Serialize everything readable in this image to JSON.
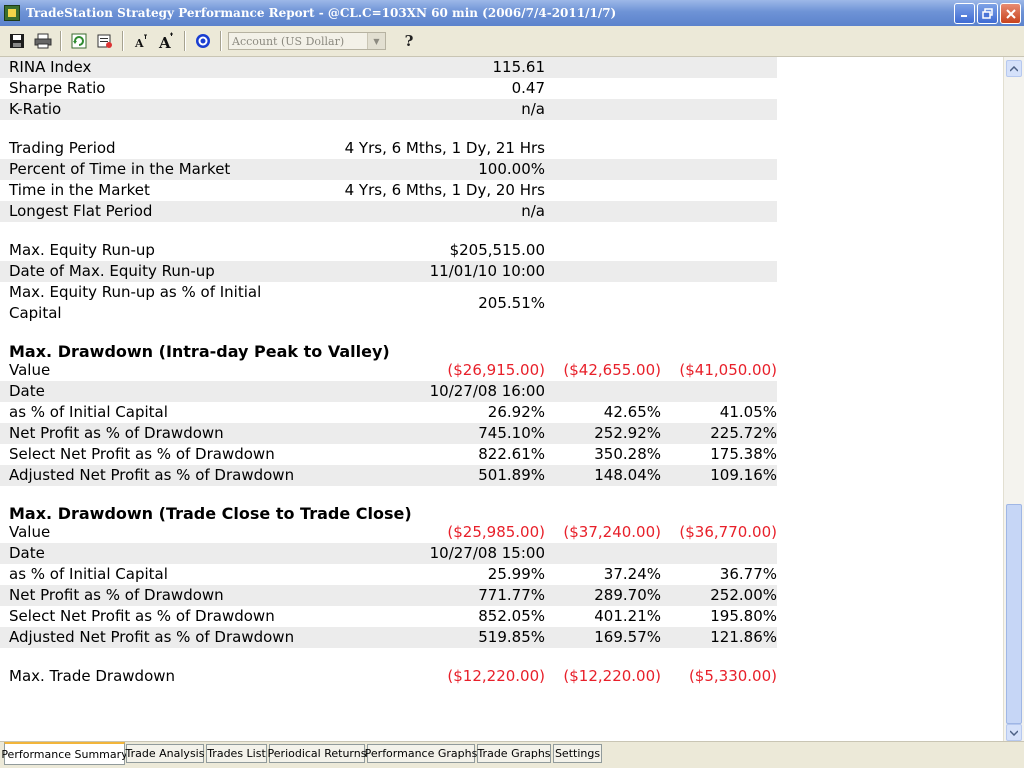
{
  "window": {
    "title": "TradeStation Strategy Performance Report - @CL.C=103XN 60 min (2006/7/4-2011/1/7)",
    "icon": "tradestation-app-icon",
    "buttons": [
      "minimize",
      "restore",
      "close"
    ]
  },
  "toolbar": {
    "account_select": "Account (US Dollar)",
    "icons": [
      "save-icon",
      "print-icon",
      "refresh-icon",
      "properties-icon",
      "font-decrease-icon",
      "font-increase-icon",
      "target-icon",
      "help-icon"
    ]
  },
  "report": {
    "group1": [
      {
        "label": "RINA Index",
        "v1": "115.61"
      },
      {
        "label": "Sharpe Ratio",
        "v1": "0.47"
      },
      {
        "label": "K-Ratio",
        "v1": "n/a"
      }
    ],
    "group2": [
      {
        "label": "Trading Period",
        "v1": "4 Yrs, 6 Mths, 1 Dy, 21 Hrs"
      },
      {
        "label": "Percent of Time in the Market",
        "v1": "100.00%"
      },
      {
        "label": "Time in the Market",
        "v1": "4 Yrs, 6 Mths, 1 Dy, 20 Hrs"
      },
      {
        "label": "Longest Flat Period",
        "v1": "n/a"
      }
    ],
    "group3": [
      {
        "label": "Max. Equity Run-up",
        "v1": "$205,515.00"
      },
      {
        "label": "Date of Max. Equity Run-up",
        "v1": "11/01/10 10:00"
      },
      {
        "label_line1": "Max. Equity Run-up as % of Initial",
        "label_line2": "Capital",
        "v1": "205.51%"
      }
    ],
    "intraday": {
      "heading": "Max. Drawdown (Intra-day Peak to Valley)",
      "rows": [
        {
          "label": "Value",
          "v1": "($26,915.00)",
          "v2": "($42,655.00)",
          "v3": "($41,050.00)"
        },
        {
          "label": "Date",
          "v1": "10/27/08 16:00",
          "v2": "",
          "v3": ""
        },
        {
          "label": "as % of Initial Capital",
          "v1": "26.92%",
          "v2": "42.65%",
          "v3": "41.05%"
        },
        {
          "label": "Net Profit as % of Drawdown",
          "v1": "745.10%",
          "v2": "252.92%",
          "v3": "225.72%"
        },
        {
          "label": "Select Net Profit as % of Drawdown",
          "v1": "822.61%",
          "v2": "350.28%",
          "v3": "175.38%"
        },
        {
          "label": "Adjusted Net Profit as % of Drawdown",
          "v1": "501.89%",
          "v2": "148.04%",
          "v3": "109.16%"
        }
      ]
    },
    "tradeclose": {
      "heading": "Max. Drawdown (Trade Close to Trade Close)",
      "rows": [
        {
          "label": "Value",
          "v1": "($25,985.00)",
          "v2": "($37,240.00)",
          "v3": "($36,770.00)"
        },
        {
          "label": "Date",
          "v1": "10/27/08 15:00",
          "v2": "",
          "v3": ""
        },
        {
          "label": "as % of Initial Capital",
          "v1": "25.99%",
          "v2": "37.24%",
          "v3": "36.77%"
        },
        {
          "label": "Net Profit as % of Drawdown",
          "v1": "771.77%",
          "v2": "289.70%",
          "v3": "252.00%"
        },
        {
          "label": "Select Net Profit as % of Drawdown",
          "v1": "852.05%",
          "v2": "401.21%",
          "v3": "195.80%"
        },
        {
          "label": "Adjusted Net Profit as % of Drawdown",
          "v1": "519.85%",
          "v2": "169.57%",
          "v3": "121.86%"
        }
      ]
    },
    "trade_drawdown": {
      "label": "Max. Trade Drawdown",
      "v1": "($12,220.00)",
      "v2": "($12,220.00)",
      "v3": "($5,330.00)"
    }
  },
  "tabs": [
    {
      "label": "Performance Summary",
      "active": true
    },
    {
      "label": "Trade Analysis"
    },
    {
      "label": "Trades List"
    },
    {
      "label": "Periodical Returns"
    },
    {
      "label": "Performance Graphs"
    },
    {
      "label": "Trade Graphs"
    },
    {
      "label": "Settings"
    }
  ],
  "colors": {
    "negative": "#e8202a",
    "row_shade": "#ececec",
    "active_tab_accent": "#f2b53a"
  }
}
